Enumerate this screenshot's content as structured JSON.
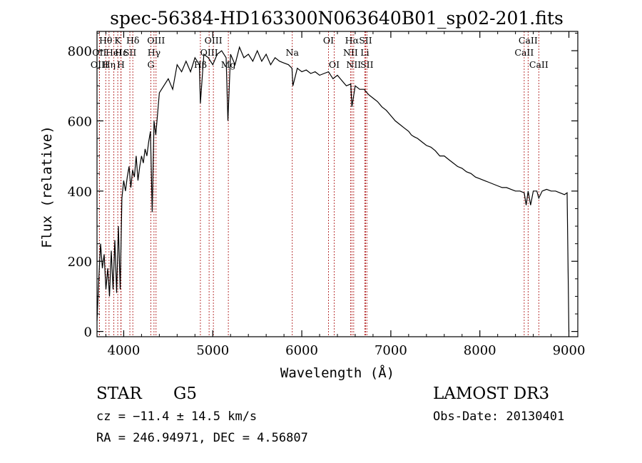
{
  "chart_data": {
    "type": "line",
    "title": "spec-56384-HD163300N063640B01_sp02-201.fits",
    "xlabel": "Wavelength (Å)",
    "ylabel": "Flux (relative)",
    "xlim": [
      3700,
      9100
    ],
    "ylim": [
      -15,
      855
    ],
    "xticks": [
      4000,
      5000,
      6000,
      7000,
      8000,
      9000
    ],
    "yticks": [
      0,
      200,
      400,
      600,
      800
    ],
    "grid": false,
    "series": [
      {
        "x": [
          3700,
          3720,
          3740,
          3760,
          3780,
          3800,
          3820,
          3840,
          3860,
          3880,
          3900,
          3920,
          3940,
          3960,
          3980,
          4000,
          4020,
          4040,
          4060,
          4080,
          4100,
          4120,
          4140,
          4160,
          4180,
          4200,
          4220,
          4240,
          4260,
          4280,
          4300,
          4320,
          4340,
          4360,
          4380,
          4400,
          4450,
          4500,
          4550,
          4600,
          4650,
          4700,
          4750,
          4800,
          4850,
          4861,
          4900,
          4950,
          5000,
          5050,
          5100,
          5150,
          5170,
          5200,
          5250,
          5300,
          5350,
          5400,
          5450,
          5500,
          5550,
          5600,
          5650,
          5700,
          5750,
          5800,
          5850,
          5890,
          5900,
          5950,
          6000,
          6050,
          6100,
          6150,
          6200,
          6250,
          6300,
          6350,
          6400,
          6450,
          6500,
          6550,
          6563,
          6600,
          6650,
          6700,
          6750,
          6800,
          6850,
          6900,
          6950,
          7000,
          7050,
          7100,
          7150,
          7200,
          7230,
          7260,
          7300,
          7350,
          7400,
          7450,
          7500,
          7550,
          7600,
          7650,
          7700,
          7750,
          7800,
          7850,
          7900,
          7950,
          8000,
          8050,
          8100,
          8150,
          8200,
          8250,
          8300,
          8350,
          8400,
          8450,
          8498,
          8520,
          8542,
          8570,
          8600,
          8640,
          8662,
          8700,
          8750,
          8800,
          8850,
          8900,
          8950,
          8980,
          9000
        ],
        "y": [
          30,
          150,
          250,
          180,
          220,
          120,
          180,
          100,
          230,
          120,
          260,
          110,
          300,
          120,
          380,
          430,
          400,
          440,
          470,
          410,
          460,
          440,
          500,
          430,
          470,
          500,
          480,
          520,
          500,
          540,
          570,
          340,
          600,
          560,
          620,
          680,
          700,
          720,
          690,
          760,
          740,
          770,
          740,
          780,
          760,
          650,
          790,
          780,
          760,
          790,
          800,
          780,
          600,
          790,
          760,
          810,
          780,
          790,
          770,
          800,
          770,
          790,
          760,
          780,
          770,
          765,
          760,
          750,
          700,
          750,
          740,
          745,
          735,
          740,
          730,
          735,
          740,
          720,
          730,
          715,
          700,
          705,
          640,
          700,
          690,
          690,
          675,
          665,
          655,
          640,
          630,
          615,
          600,
          590,
          580,
          570,
          560,
          555,
          550,
          540,
          530,
          525,
          515,
          500,
          500,
          490,
          480,
          470,
          465,
          455,
          450,
          440,
          435,
          430,
          425,
          420,
          415,
          410,
          410,
          405,
          400,
          400,
          395,
          360,
          400,
          360,
          400,
          400,
          380,
          400,
          405,
          400,
          400,
          395,
          390,
          395,
          0
        ]
      }
    ],
    "spectral_lines": [
      {
        "label": "Hθ",
        "x": 3798,
        "row": 0
      },
      {
        "label": "OII",
        "x": 3727,
        "row": 1
      },
      {
        "label": "OIII",
        "x": 3727,
        "row": 2
      },
      {
        "label": "K",
        "x": 3933,
        "row": 0
      },
      {
        "label": "HeI",
        "x": 3889,
        "row": 1
      },
      {
        "label": "Hη",
        "x": 3835,
        "row": 2
      },
      {
        "label": "SII",
        "x": 4069,
        "row": 1
      },
      {
        "label": "Hε",
        "x": 3970,
        "row": 1
      },
      {
        "label": "H",
        "x": 3968,
        "row": 2
      },
      {
        "label": "Hδ",
        "x": 4102,
        "row": 0
      },
      {
        "label": "OIII",
        "x": 4363,
        "row": 0
      },
      {
        "label": "Hγ",
        "x": 4340,
        "row": 1
      },
      {
        "label": "G",
        "x": 4305,
        "row": 2
      },
      {
        "label": "OIII",
        "x": 5007,
        "row": 0
      },
      {
        "label": "OIII",
        "x": 4959,
        "row": 1
      },
      {
        "label": "Hβ",
        "x": 4861,
        "row": 2
      },
      {
        "label": "Mg",
        "x": 5175,
        "row": 2
      },
      {
        "label": "Na",
        "x": 5893,
        "row": 1
      },
      {
        "label": "OI",
        "x": 6300,
        "row": 0
      },
      {
        "label": "OI",
        "x": 6364,
        "row": 2
      },
      {
        "label": "Hα",
        "x": 6563,
        "row": 0
      },
      {
        "label": "NII",
        "x": 6548,
        "row": 1
      },
      {
        "label": "NII",
        "x": 6583,
        "row": 2
      },
      {
        "label": "SII",
        "x": 6716,
        "row": 0
      },
      {
        "label": "Li",
        "x": 6708,
        "row": 1
      },
      {
        "label": "SII",
        "x": 6731,
        "row": 2
      },
      {
        "label": "CaII",
        "x": 8542,
        "row": 0
      },
      {
        "label": "CaII",
        "x": 8498,
        "row": 1
      },
      {
        "label": "CaII",
        "x": 8662,
        "row": 2
      }
    ]
  },
  "info": {
    "object_class": "STAR",
    "subclass": "G5",
    "survey": "LAMOST DR3",
    "cz": "cz = −11.4 ± 14.5 km/s",
    "obs_date": "Obs-Date: 20130401",
    "coords": "RA = 246.94971, DEC =   4.56807"
  },
  "colors": {
    "spectrum": "#000000",
    "line_markers": "#b22222"
  }
}
